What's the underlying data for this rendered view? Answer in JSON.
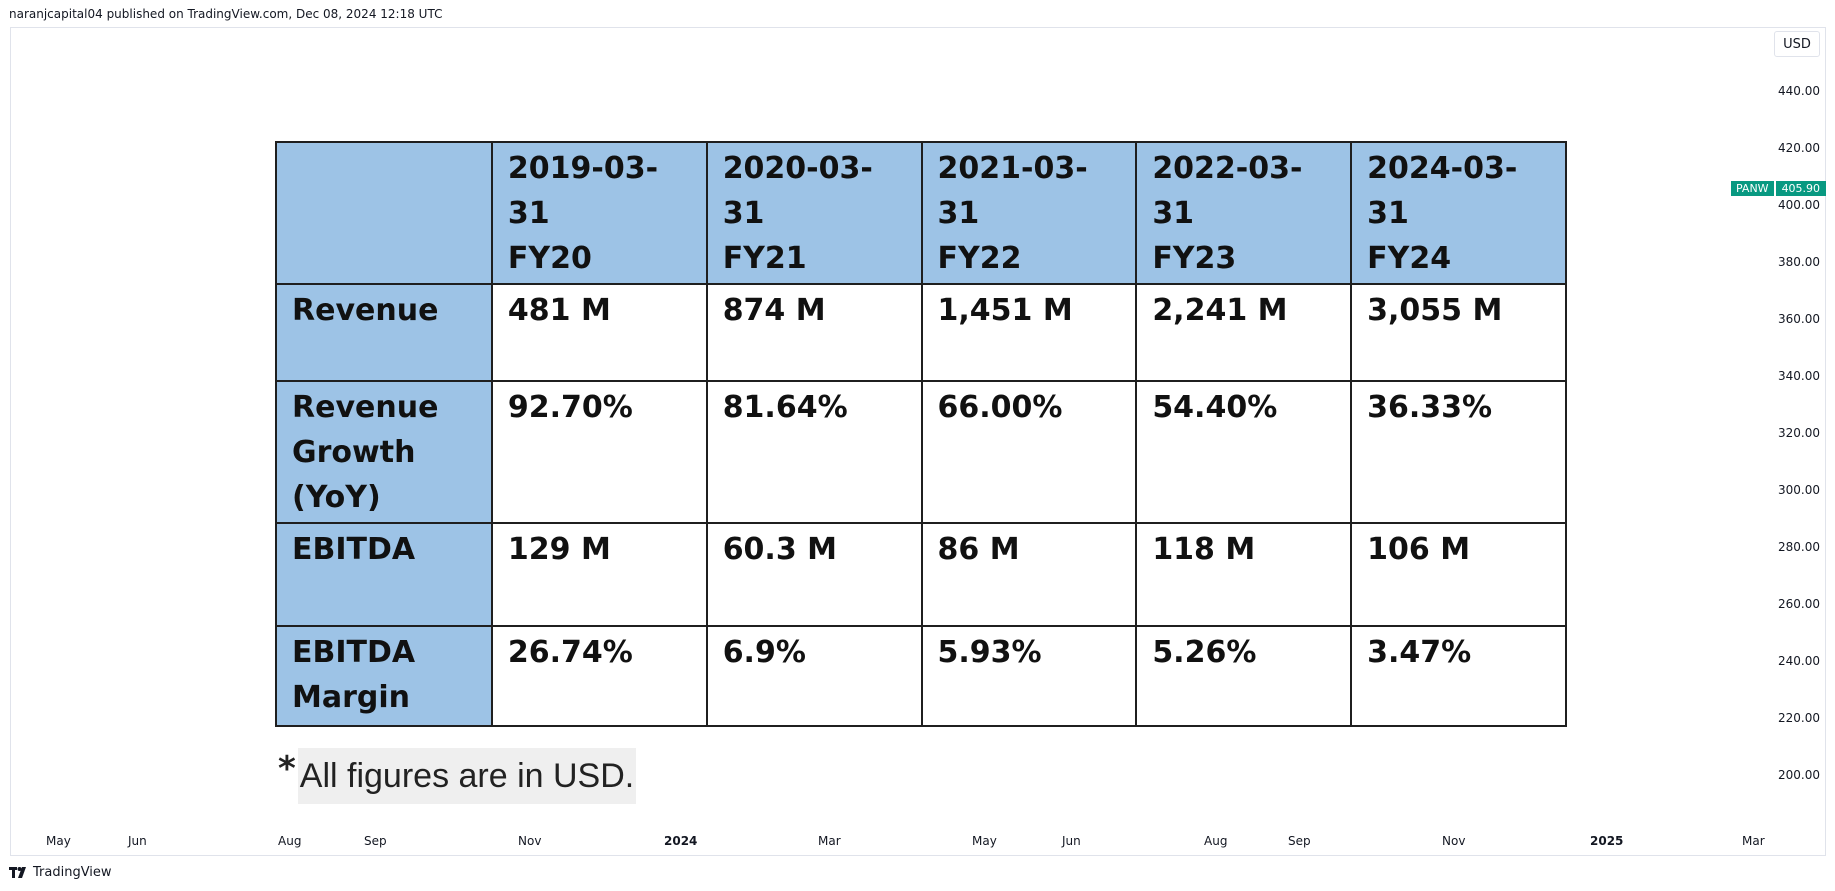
{
  "header": {
    "published": "naranjcapital04 published on TradingView.com, Dec 08, 2024 12:18 UTC"
  },
  "price_scale": {
    "currency": "USD",
    "labels": [
      "440.00",
      "420.00",
      "400.00",
      "380.00",
      "360.00",
      "340.00",
      "320.00",
      "300.00",
      "280.00",
      "260.00",
      "240.00",
      "220.00",
      "200.00"
    ],
    "ticker": {
      "symbol": "PANW",
      "price": "405.90",
      "color": "#089981"
    }
  },
  "time_axis": {
    "labels": [
      {
        "text": "May",
        "bold": false
      },
      {
        "text": "Jun",
        "bold": false
      },
      {
        "text": "Aug",
        "bold": false
      },
      {
        "text": "Sep",
        "bold": false
      },
      {
        "text": "Nov",
        "bold": false
      },
      {
        "text": "2024",
        "bold": true
      },
      {
        "text": "Mar",
        "bold": false
      },
      {
        "text": "May",
        "bold": false
      },
      {
        "text": "Jun",
        "bold": false
      },
      {
        "text": "Aug",
        "bold": false
      },
      {
        "text": "Sep",
        "bold": false
      },
      {
        "text": "Nov",
        "bold": false
      },
      {
        "text": "2025",
        "bold": true
      },
      {
        "text": "Mar",
        "bold": false
      }
    ]
  },
  "table": {
    "header_color": "#9dc3e6",
    "columns": [
      {
        "date": "2019-03-31",
        "fy": "FY20"
      },
      {
        "date": "2020-03-31",
        "fy": "FY21"
      },
      {
        "date": "2021-03-31",
        "fy": "FY22"
      },
      {
        "date": "2022-03-31",
        "fy": "FY23"
      },
      {
        "date": "2024-03-31",
        "fy": "FY24"
      }
    ],
    "rows": [
      {
        "label": [
          "Revenue"
        ],
        "values": [
          "481 M",
          "874 M",
          "1,451 M",
          "2,241 M",
          "3,055 M"
        ]
      },
      {
        "label": [
          "Revenue",
          "Growth",
          "(YoY)"
        ],
        "values": [
          "92.70%",
          "81.64%",
          "66.00%",
          "54.40%",
          "36.33%"
        ]
      },
      {
        "label": [
          "EBITDA"
        ],
        "values": [
          "129 M",
          "60.3 M",
          "86 M",
          "118 M",
          "106 M"
        ]
      },
      {
        "label": [
          "EBITDA",
          "Margin"
        ],
        "values": [
          "26.74%",
          "6.9%",
          "5.93%",
          "5.26%",
          "3.47%"
        ]
      }
    ]
  },
  "footnote": {
    "star": "*",
    "text": "All figures are in USD."
  },
  "brand": {
    "name": "TradingView",
    "icon": "tradingview-logo-icon"
  }
}
